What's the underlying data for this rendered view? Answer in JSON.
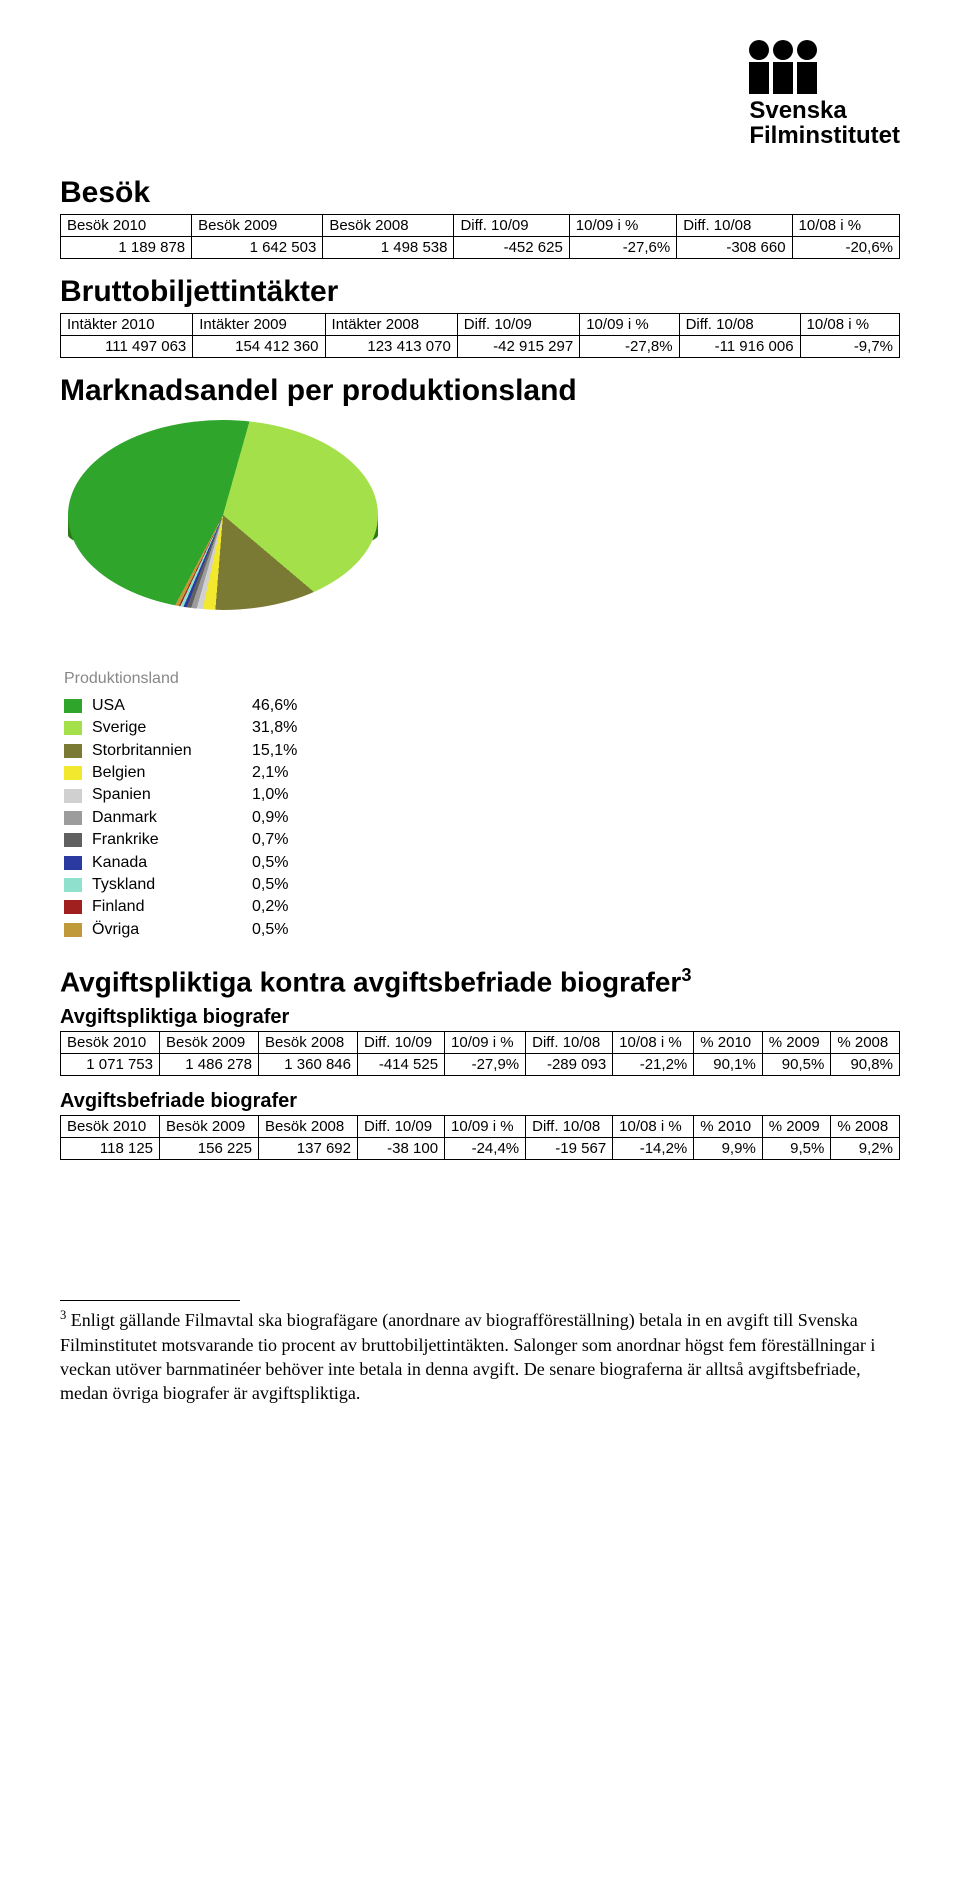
{
  "logo": {
    "line1": "Svenska",
    "line2": "Filminstitutet"
  },
  "besok": {
    "title": "Besök",
    "headers": [
      "Besök 2010",
      "Besök 2009",
      "Besök 2008",
      "Diff. 10/09",
      "10/09 i %",
      "Diff. 10/08",
      "10/08 i %"
    ],
    "row": [
      "1 189 878",
      "1 642 503",
      "1 498 538",
      "-452 625",
      "-27,6%",
      "-308 660",
      "-20,6%"
    ]
  },
  "brutto": {
    "title": "Bruttobiljettintäkter",
    "headers": [
      "Intäkter 2010",
      "Intäkter 2009",
      "Intäkter 2008",
      "Diff. 10/09",
      "10/09 i %",
      "Diff. 10/08",
      "10/08 i %"
    ],
    "row": [
      "111 497 063",
      "154 412 360",
      "123 413 070",
      "-42 915 297",
      "-27,8%",
      "-11 916 006",
      "-9,7%"
    ]
  },
  "marknad": {
    "title": "Marknadsandel per produktionsland",
    "legend_title": "Produktionsland",
    "items": [
      {
        "label": "USA",
        "pct": "46,6%",
        "color": "#2fa52b"
      },
      {
        "label": "Sverige",
        "pct": "31,8%",
        "color": "#a4e04a"
      },
      {
        "label": "Storbritannien",
        "pct": "15,1%",
        "color": "#7a7a34"
      },
      {
        "label": "Belgien",
        "pct": "2,1%",
        "color": "#f2e82e"
      },
      {
        "label": "Spanien",
        "pct": "1,0%",
        "color": "#d0d0d0"
      },
      {
        "label": "Danmark",
        "pct": "0,9%",
        "color": "#9c9c9c"
      },
      {
        "label": "Frankrike",
        "pct": "0,7%",
        "color": "#606060"
      },
      {
        "label": "Kanada",
        "pct": "0,5%",
        "color": "#2a3aa0"
      },
      {
        "label": "Tyskland",
        "pct": "0,5%",
        "color": "#8fe0cc"
      },
      {
        "label": "Finland",
        "pct": "0,2%",
        "color": "#a02020"
      },
      {
        "label": "Övriga",
        "pct": "0,5%",
        "color": "#c09a3a"
      }
    ],
    "pie_gradient": "conic-gradient(from 208deg, #2fa52b 0% 46.6%, #a4e04a 46.6% 78.4%, #7a7a34 78.4% 93.5%, #f2e82e 93.5% 95.6%, #d0d0d0 95.6% 96.6%, #9c9c9c 96.6% 97.5%, #606060 97.5% 98.2%, #2a3aa0 98.2% 98.7%, #8fe0cc 98.7% 99.2%, #a02020 99.2% 99.4%, #c09a3a 99.4% 100%)"
  },
  "avgifts_section_title": "Avgiftspliktiga kontra avgiftsbefriade biografer",
  "avgifts_sup": "3",
  "avgiftspliktiga": {
    "title": "Avgiftspliktiga biografer",
    "headers": [
      "Besök 2010",
      "Besök 2009",
      "Besök 2008",
      "Diff. 10/09",
      "10/09 i %",
      "Diff. 10/08",
      "10/08 i %",
      "% 2010",
      "% 2009",
      "% 2008"
    ],
    "row": [
      "1 071 753",
      "1 486 278",
      "1 360 846",
      "-414 525",
      "-27,9%",
      "-289 093",
      "-21,2%",
      "90,1%",
      "90,5%",
      "90,8%"
    ]
  },
  "avgiftsbefriade": {
    "title": "Avgiftsbefriade biografer",
    "headers": [
      "Besök 2010",
      "Besök 2009",
      "Besök 2008",
      "Diff. 10/09",
      "10/09 i %",
      "Diff. 10/08",
      "10/08 i %",
      "% 2010",
      "% 2009",
      "% 2008"
    ],
    "row": [
      "118 125",
      "156 225",
      "137 692",
      "-38 100",
      "-24,4%",
      "-19 567",
      "-14,2%",
      "9,9%",
      "9,5%",
      "9,2%"
    ]
  },
  "footnote": {
    "marker": "3",
    "text": " Enligt gällande Filmavtal ska biografägare (anordnare av biografföreställning) betala in en avgift till Svenska Filminstitutet motsvarande tio procent av bruttobiljettintäkten. Salonger som anordnar högst fem föreställningar i veckan utöver barnmatinéer behöver inte betala in denna avgift. De senare biograferna är alltså avgiftsbefriade, medan övriga biografer är avgiftspliktiga."
  }
}
